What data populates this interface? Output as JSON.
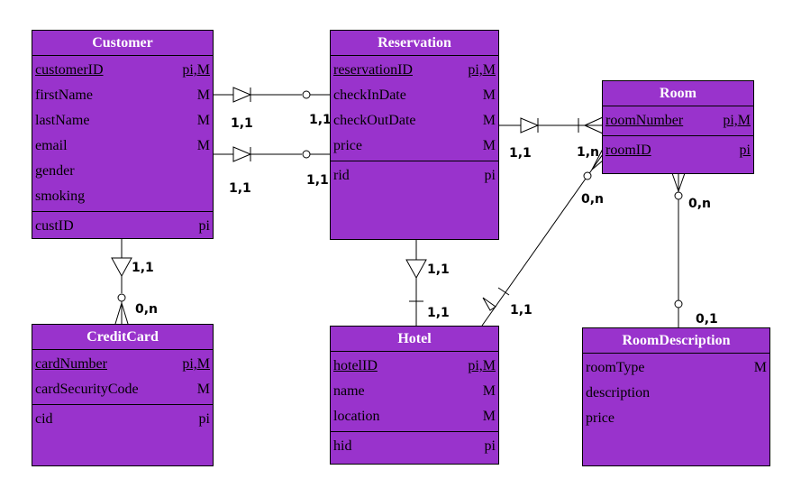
{
  "entities": {
    "customer": {
      "name": "Customer",
      "attrs": [
        {
          "name": "customerID",
          "tag": "pi,M"
        },
        {
          "name": "firstName",
          "tag": "M"
        },
        {
          "name": "lastName",
          "tag": "M"
        },
        {
          "name": "email",
          "tag": "M"
        },
        {
          "name": "gender",
          "tag": ""
        },
        {
          "name": "smoking",
          "tag": ""
        }
      ],
      "ids": [
        {
          "name": "custID",
          "tag": "pi"
        }
      ]
    },
    "reservation": {
      "name": "Reservation",
      "attrs": [
        {
          "name": "reservationID",
          "tag": "pi,M"
        },
        {
          "name": "checkInDate",
          "tag": "M"
        },
        {
          "name": "checkOutDate",
          "tag": "M"
        },
        {
          "name": "price",
          "tag": "M"
        }
      ],
      "ids": [
        {
          "name": "rid",
          "tag": "pi"
        }
      ]
    },
    "room": {
      "name": "Room",
      "attrs": [
        {
          "name": "roomNumber",
          "tag": "pi,M"
        }
      ],
      "ids": [
        {
          "name": "roomID",
          "tag": "pi"
        }
      ]
    },
    "creditcard": {
      "name": "CreditCard",
      "attrs": [
        {
          "name": "cardNumber",
          "tag": "pi,M"
        },
        {
          "name": "cardSecurityCode",
          "tag": "M"
        }
      ],
      "ids": [
        {
          "name": "cid",
          "tag": "pi"
        }
      ]
    },
    "hotel": {
      "name": "Hotel",
      "attrs": [
        {
          "name": "hotelID",
          "tag": "pi,M"
        },
        {
          "name": "name",
          "tag": "M"
        },
        {
          "name": "location",
          "tag": "M"
        }
      ],
      "ids": [
        {
          "name": "hid",
          "tag": "pi"
        }
      ]
    },
    "roomdescription": {
      "name": "RoomDescription",
      "attrs": [
        {
          "name": "roomType",
          "tag": "M"
        },
        {
          "name": "description",
          "tag": ""
        },
        {
          "name": "price",
          "tag": ""
        }
      ],
      "ids": []
    }
  },
  "cardinalities": {
    "cust_res1_left": "1,1",
    "cust_res1_right": "1,1",
    "cust_res2_left": "1,1",
    "cust_res2_right": "1,1",
    "res_room_left": "1,1",
    "res_room_right": "1,n",
    "cust_cc_top": "1,1",
    "cust_cc_bottom": "0,n",
    "res_hotel_top": "1,1",
    "res_hotel_bottom": "1,1",
    "room_hotel_top": "0,n",
    "room_hotel_bottom": "1,1",
    "room_desc_top": "0,n",
    "room_desc_bottom": "0,1"
  },
  "colors": {
    "entity_fill": "#9933cc",
    "title_text": "#ffffff",
    "line": "#000000"
  }
}
